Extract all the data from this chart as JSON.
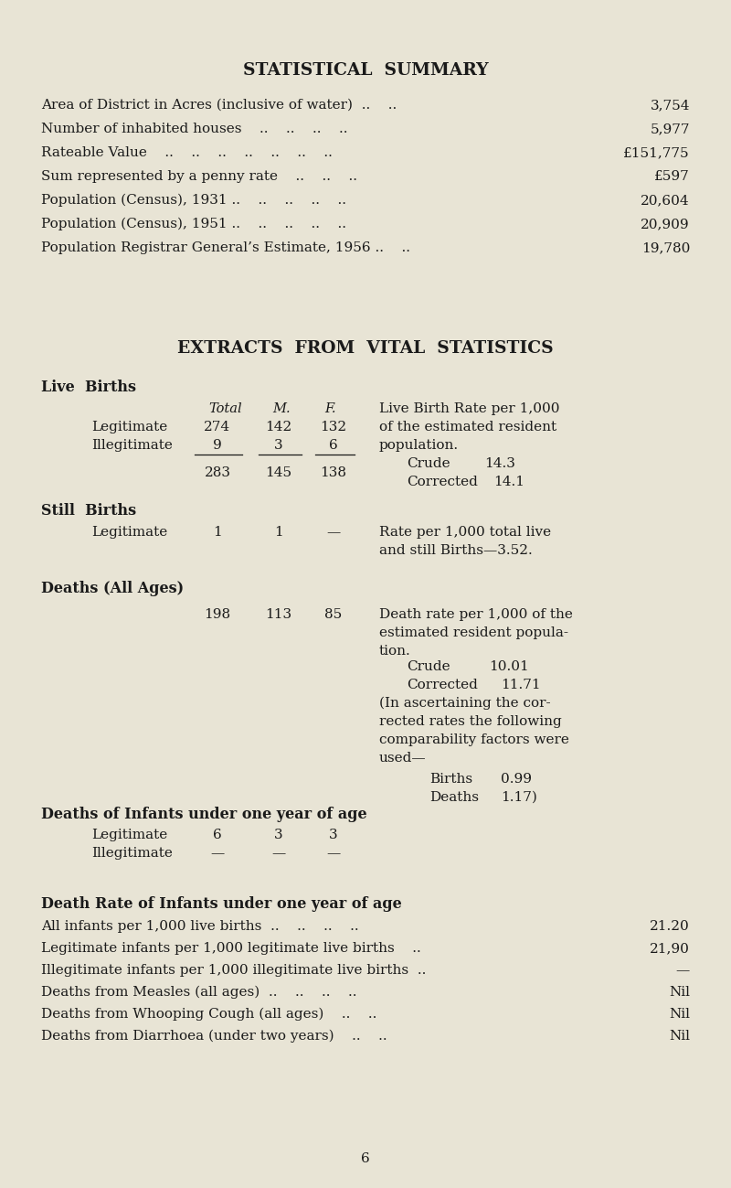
{
  "bg_color": "#e8e4d5",
  "text_color": "#1a1a1a",
  "title1": "STATISTICAL  SUMMARY",
  "title2": "EXTRACTS  FROM  VITAL  STATISTICS",
  "summary_rows": [
    [
      "Area of District in Acres (inclusive of water)  ..    ..",
      "3,754"
    ],
    [
      "Number of inhabited houses    ..    ..    ..    ..",
      "5,977"
    ],
    [
      "Rateable Value    ..    ..    ..    ..    ..    ..    ..",
      "£151,775"
    ],
    [
      "Sum represented by a penny rate    ..    ..    ..",
      "£597"
    ],
    [
      "Population (Census), 1931 ..    ..    ..    ..    ..",
      "20,604"
    ],
    [
      "Population (Census), 1951 ..    ..    ..    ..    ..",
      "20,909"
    ],
    [
      "Population Registrar General’s Estimate, 1956 ..    ..",
      "19,780"
    ]
  ],
  "page_number": "6"
}
